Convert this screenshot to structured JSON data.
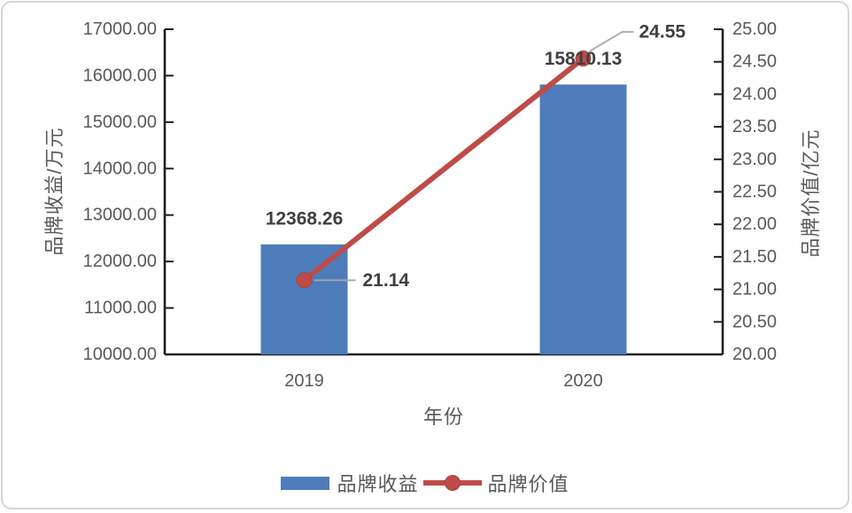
{
  "chart_data": {
    "type": "combo",
    "categories": [
      "2019",
      "2020"
    ],
    "series": [
      {
        "name": "品牌收益",
        "type": "bar",
        "axis": "left",
        "values": [
          12368.26,
          15810.13
        ],
        "data_labels": [
          "12368.26",
          "15810.13"
        ],
        "color": "#4e7cba"
      },
      {
        "name": "品牌价值",
        "type": "line",
        "axis": "right",
        "values": [
          21.14,
          24.55
        ],
        "data_labels": [
          "21.14",
          "24.55"
        ],
        "color": "#be4b48"
      }
    ],
    "x_axis": {
      "title": "年份",
      "tick_labels": [
        "2019",
        "2020"
      ]
    },
    "left_axis": {
      "title": "品牌收益/万元",
      "min": 10000,
      "max": 17000,
      "step": 1000,
      "tick_labels": [
        "17000.00",
        "16000.00",
        "15000.00",
        "14000.00",
        "13000.00",
        "12000.00",
        "11000.00",
        "10000.00"
      ]
    },
    "right_axis": {
      "title": "品牌价值/亿元",
      "min": 20,
      "max": 25,
      "step": 0.5,
      "tick_labels": [
        "25.00",
        "24.50",
        "24.00",
        "23.50",
        "23.00",
        "22.50",
        "22.00",
        "21.50",
        "21.00",
        "20.50",
        "20.00"
      ]
    },
    "legend": {
      "items": [
        "品牌收益",
        "品牌价值"
      ],
      "position": "bottom"
    },
    "grid": false
  },
  "colors": {
    "bar": "#4e7cba",
    "line": "#be4b48",
    "marker_edge": "#a8423f",
    "axis_line": "#1f1f1f",
    "tick_text": "#595959",
    "data_label_text": "#3f3f3f",
    "leader_line": "#a6a6a6",
    "frame_border": "#d6d6d6",
    "background": "#ffffff"
  }
}
